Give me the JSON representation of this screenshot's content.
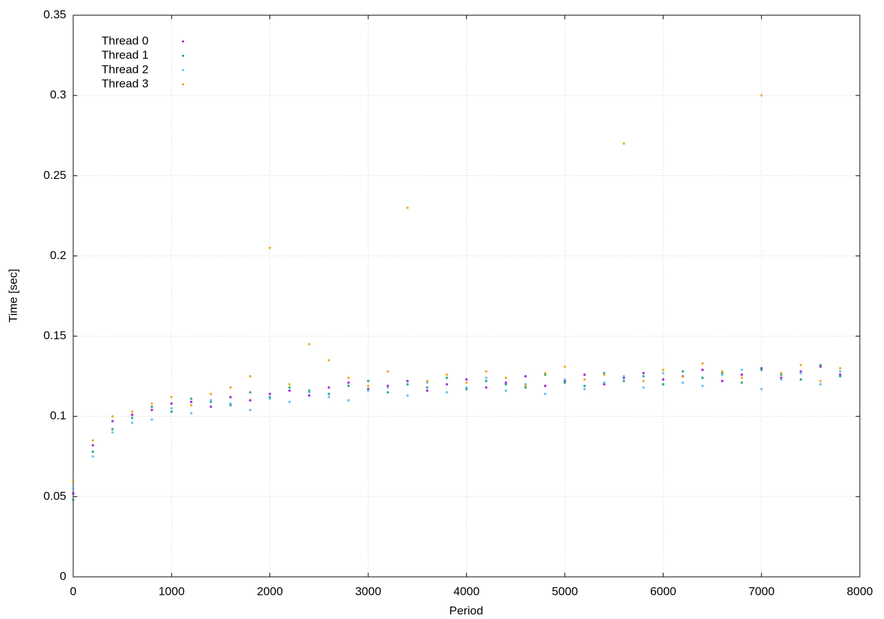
{
  "chart_data": {
    "type": "scatter",
    "xlabel": "Period",
    "ylabel": "Time [sec]",
    "xlim": [
      0,
      8000
    ],
    "ylim": [
      0,
      0.35
    ],
    "xticks": [
      0,
      1000,
      2000,
      3000,
      4000,
      5000,
      6000,
      7000,
      8000
    ],
    "yticks": [
      0,
      0.05,
      0.1,
      0.15,
      0.2,
      0.25,
      0.3,
      0.35
    ],
    "grid": true,
    "legend": "upper-left",
    "x": [
      0,
      200,
      400,
      600,
      800,
      1000,
      1200,
      1400,
      1600,
      1800,
      2000,
      2200,
      2400,
      2600,
      2800,
      3000,
      3200,
      3400,
      3600,
      3800,
      4000,
      4200,
      4400,
      4600,
      4800,
      5000,
      5200,
      5400,
      5600,
      5800,
      6000,
      6200,
      6400,
      6600,
      6800,
      7000,
      7200,
      7400,
      7600,
      7800
    ],
    "series": [
      {
        "name": "Thread 0",
        "color": "#9400d3",
        "values": [
          0.052,
          0.082,
          0.097,
          0.101,
          0.104,
          0.108,
          0.109,
          0.106,
          0.112,
          0.11,
          0.114,
          0.116,
          0.113,
          0.118,
          0.121,
          0.117,
          0.119,
          0.122,
          0.116,
          0.12,
          0.123,
          0.118,
          0.121,
          0.125,
          0.119,
          0.122,
          0.126,
          0.12,
          0.124,
          0.127,
          0.123,
          0.125,
          0.129,
          0.122,
          0.126,
          0.13,
          0.124,
          0.128,
          0.131,
          0.126
        ]
      },
      {
        "name": "Thread 1",
        "color": "#009e73",
        "values": [
          0.048,
          0.078,
          0.092,
          0.099,
          0.106,
          0.103,
          0.111,
          0.109,
          0.107,
          0.115,
          0.112,
          0.118,
          0.116,
          0.114,
          0.119,
          0.122,
          0.115,
          0.12,
          0.118,
          0.124,
          0.117,
          0.122,
          0.12,
          0.118,
          0.126,
          0.121,
          0.119,
          0.127,
          0.122,
          0.125,
          0.12,
          0.128,
          0.124,
          0.127,
          0.121,
          0.129,
          0.126,
          0.123,
          0.132,
          0.125
        ]
      },
      {
        "name": "Thread 2",
        "color": "#56b4e9",
        "values": [
          0.055,
          0.075,
          0.09,
          0.096,
          0.098,
          0.105,
          0.102,
          0.11,
          0.108,
          0.104,
          0.111,
          0.109,
          0.115,
          0.112,
          0.11,
          0.116,
          0.118,
          0.113,
          0.121,
          0.115,
          0.118,
          0.124,
          0.116,
          0.12,
          0.114,
          0.123,
          0.117,
          0.121,
          0.125,
          0.118,
          0.127,
          0.121,
          0.119,
          0.126,
          0.129,
          0.117,
          0.123,
          0.127,
          0.12,
          0.128
        ]
      },
      {
        "name": "Thread 3",
        "color": "#e69f00",
        "values": [
          0.06,
          0.085,
          0.1,
          0.103,
          0.108,
          0.112,
          0.107,
          0.114,
          0.118,
          0.125,
          0.205,
          0.12,
          0.145,
          0.135,
          0.124,
          0.119,
          0.128,
          0.23,
          0.122,
          0.126,
          0.121,
          0.128,
          0.124,
          0.119,
          0.127,
          0.131,
          0.123,
          0.126,
          0.27,
          0.122,
          0.129,
          0.125,
          0.133,
          0.128,
          0.124,
          0.3,
          0.127,
          0.132,
          0.122,
          0.13
        ]
      }
    ]
  }
}
